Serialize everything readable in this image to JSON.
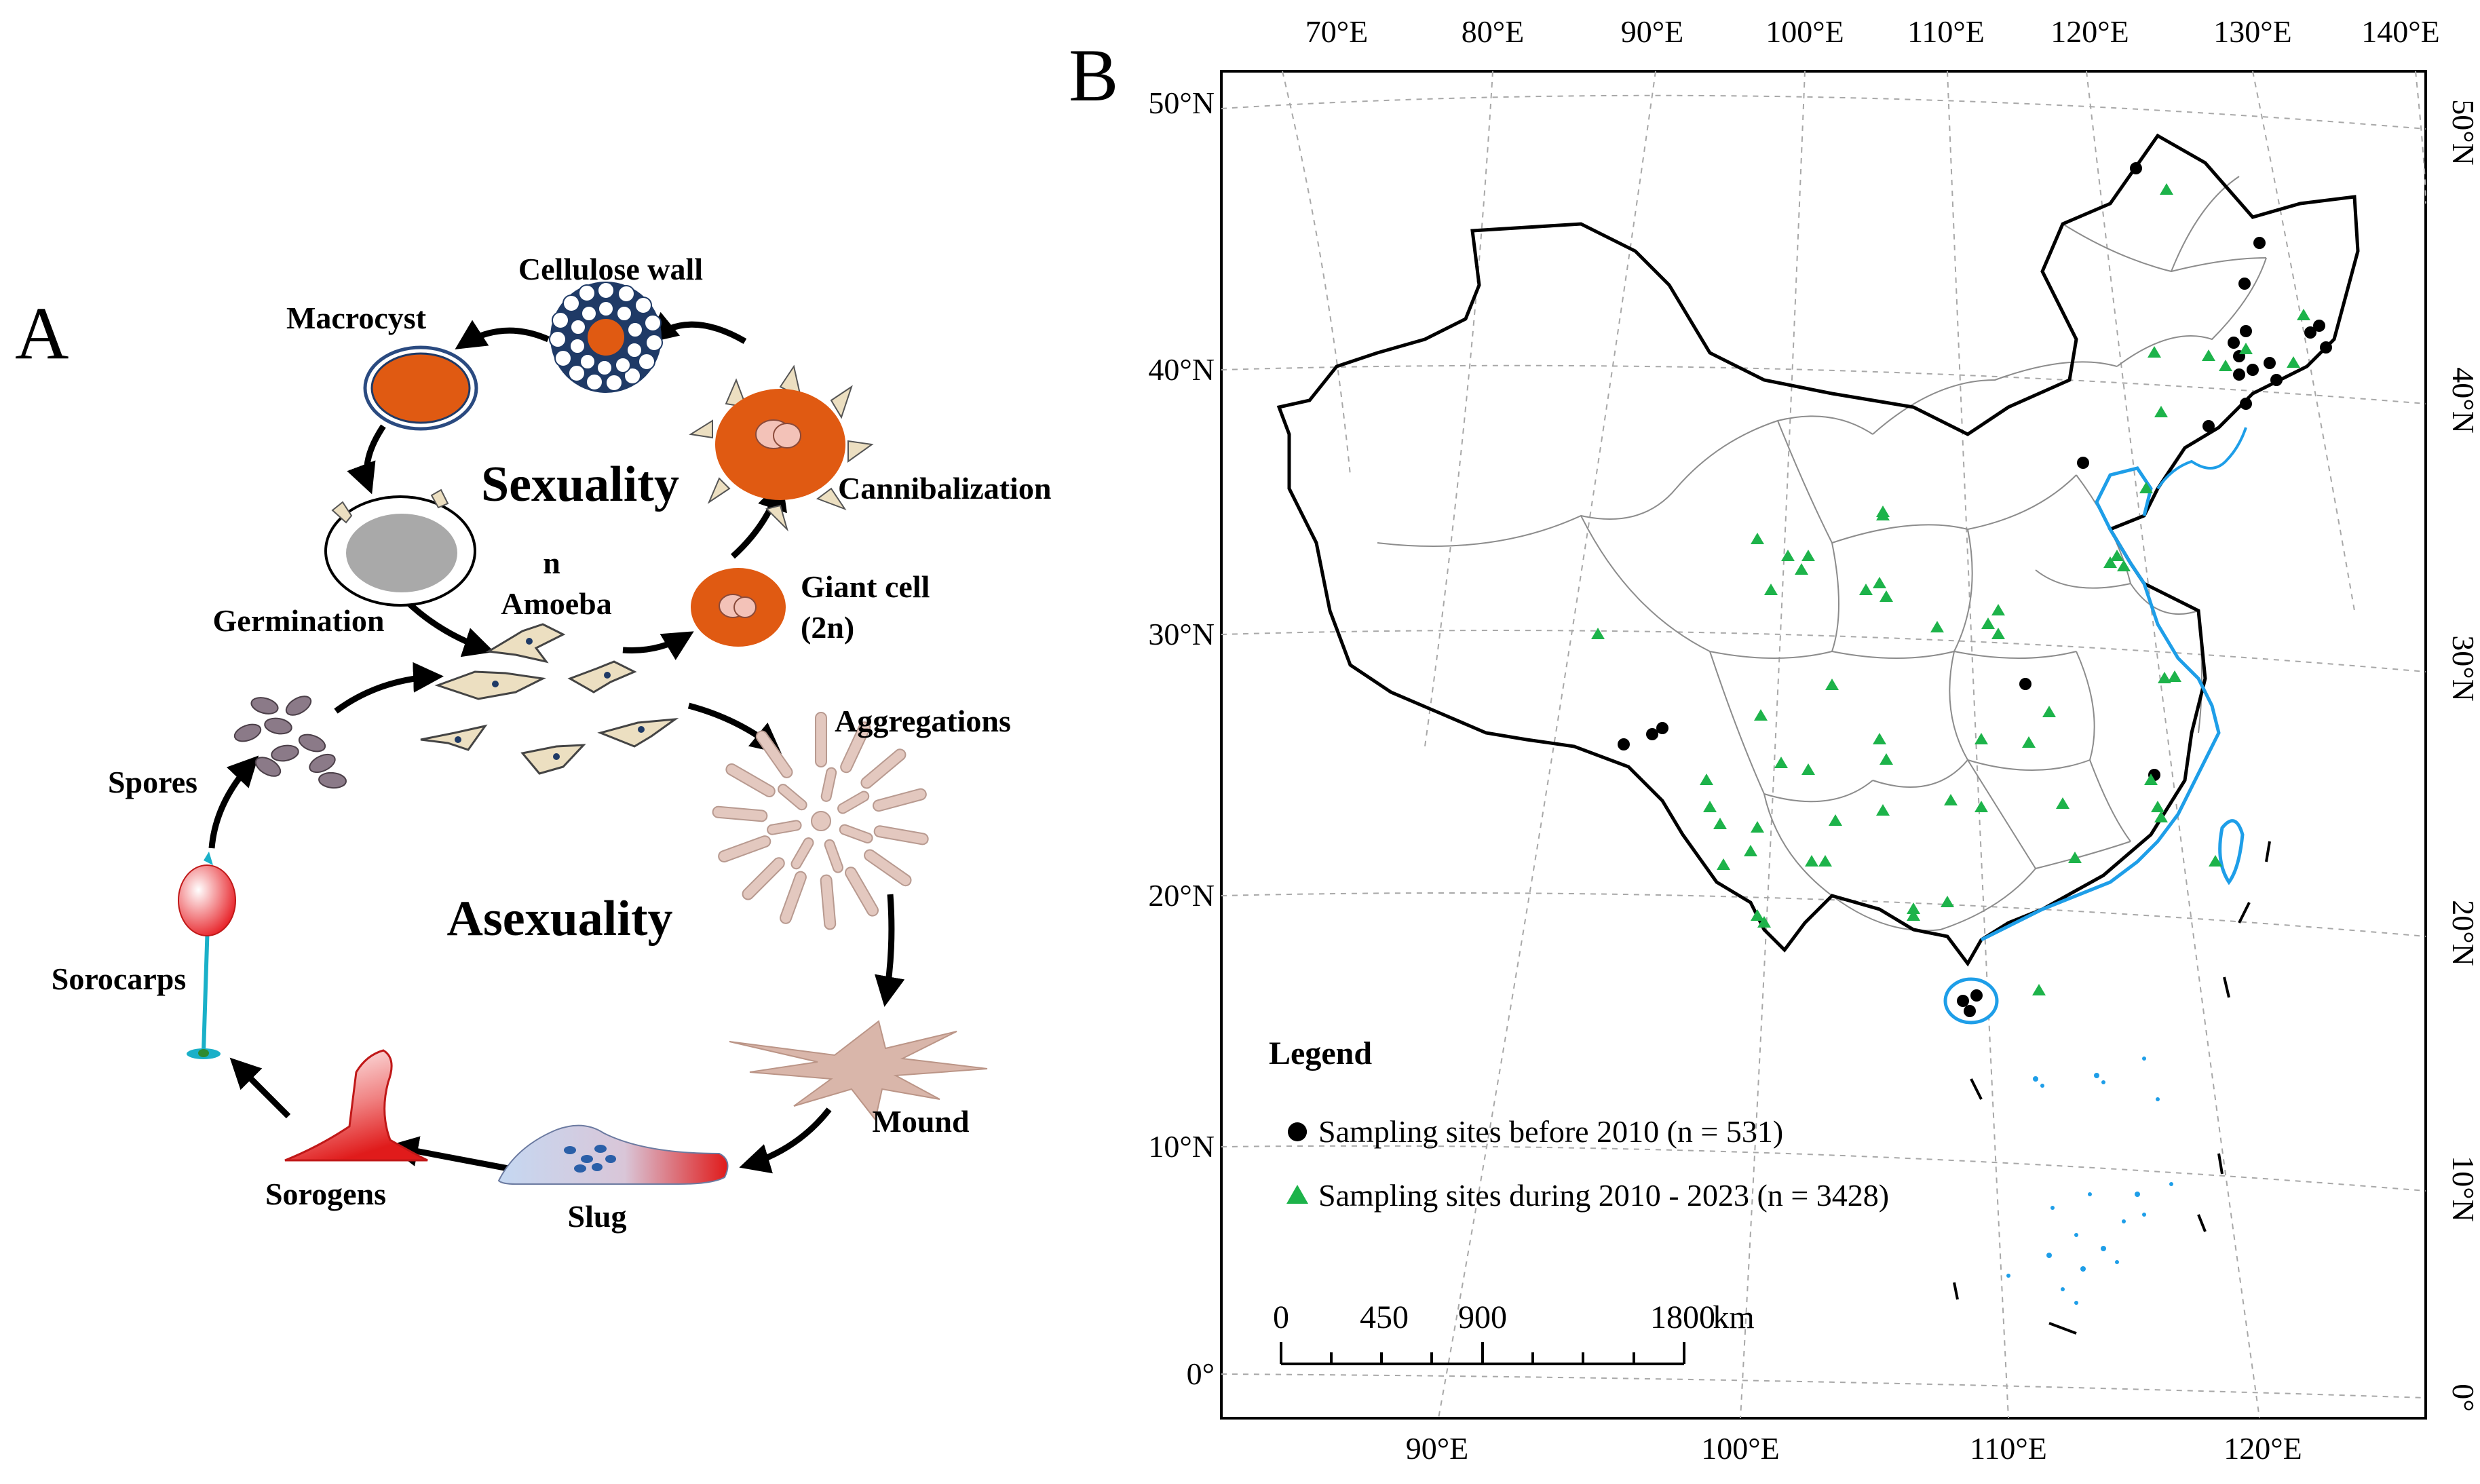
{
  "panel_a": {
    "letter": "A",
    "center_labels": {
      "sexuality": "Sexuality",
      "asexuality": "Asexuality"
    },
    "stages": {
      "cellulose_wall": "Cellulose wall",
      "macrocyst": "Macrocyst",
      "cannibalization": "Cannibalization",
      "germination": "Germination",
      "amoeba_ploidy": "n",
      "amoeba": "Amoeba",
      "giant_cell": "Giant cell",
      "giant_cell_ploidy": "(2n)",
      "aggregations": "Aggregations",
      "spores": "Spores",
      "sorocarps": "Sorocarps",
      "mound": "Mound",
      "sorogens": "Sorogens",
      "slug": "Slug"
    },
    "colors": {
      "orange": "#e05a12",
      "amoeba_fill": "#ecdfc1",
      "sorogen_red": "#e02020",
      "slug_blue": "#a9c4ec",
      "aggregation_pink": "#e3c8bf"
    }
  },
  "panel_b": {
    "letter": "B",
    "graticule": {
      "top_longitudes": [
        "70°E",
        "80°E",
        "90°E",
        "100°E",
        "110°E",
        "120°E",
        "130°E",
        "140°E"
      ],
      "bottom_longitudes": [
        "90°E",
        "100°E",
        "110°E",
        "120°E"
      ],
      "left_latitudes": [
        "50°N",
        "40°N",
        "30°N",
        "20°N",
        "10°N",
        "0°"
      ],
      "right_latitudes": [
        "50°N",
        "40°N",
        "30°N",
        "20°N",
        "10°N",
        "0°"
      ]
    },
    "legend": {
      "title": "Legend",
      "items": [
        {
          "label": "Sampling sites before 2010 (n = 531)",
          "symbol": "circle-icon",
          "color": "#000000"
        },
        {
          "label": "Sampling sites during 2010 - 2023 (n = 3428)",
          "symbol": "triangle-icon",
          "color": "#1db34a"
        }
      ]
    },
    "scale_bar": {
      "ticks": [
        "0",
        "450",
        "900",
        "1800"
      ],
      "unit": "km"
    },
    "colors": {
      "coast": "#1e9ee8",
      "border": "#000000",
      "province": "#8c8c8c",
      "site_black": "#000000",
      "site_green": "#1db34a"
    }
  }
}
